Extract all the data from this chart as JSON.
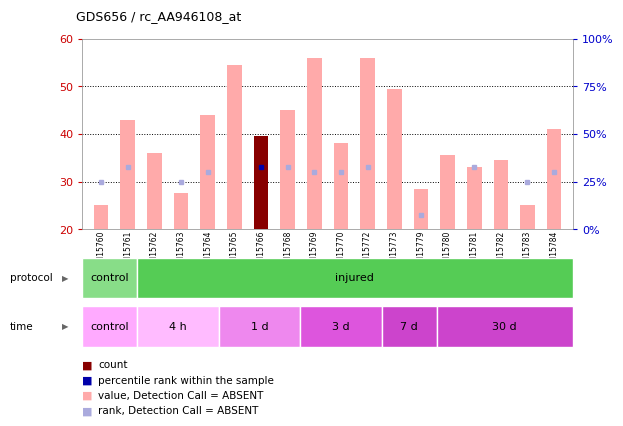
{
  "title": "GDS656 / rc_AA946108_at",
  "samples": [
    "GSM15760",
    "GSM15761",
    "GSM15762",
    "GSM15763",
    "GSM15764",
    "GSM15765",
    "GSM15766",
    "GSM15768",
    "GSM15769",
    "GSM15770",
    "GSM15772",
    "GSM15773",
    "GSM15779",
    "GSM15780",
    "GSM15781",
    "GSM15782",
    "GSM15783",
    "GSM15784"
  ],
  "bar_values": [
    25,
    43,
    36,
    27.5,
    44,
    54.5,
    39.5,
    45,
    56,
    38,
    56,
    49.5,
    28.5,
    35.5,
    33,
    34.5,
    25,
    41
  ],
  "rank_dots": [
    30,
    33,
    null,
    30,
    32,
    null,
    33,
    33,
    32,
    32,
    33,
    null,
    23,
    null,
    33,
    null,
    30,
    32
  ],
  "special_bar_idx": 6,
  "ylim_left": [
    20,
    60
  ],
  "ylim_right": [
    0,
    100
  ],
  "yticks_left": [
    20,
    30,
    40,
    50,
    60
  ],
  "yticks_right": [
    0,
    25,
    50,
    75,
    100
  ],
  "ytick_right_labels": [
    "0%",
    "25%",
    "50%",
    "75%",
    "100%"
  ],
  "left_tick_color": "#cc0000",
  "right_tick_color": "#0000cc",
  "bar_color_normal": "#ffaaaa",
  "bar_color_special": "#880000",
  "rank_dot_color": "#aaaadd",
  "rank_dot_color_special": "#0000aa",
  "protocol_groups": [
    {
      "label": "control",
      "start": 0,
      "end": 2,
      "color": "#88dd88"
    },
    {
      "label": "injured",
      "start": 2,
      "end": 18,
      "color": "#55cc55"
    }
  ],
  "time_groups": [
    {
      "label": "control",
      "start": 0,
      "end": 2,
      "color": "#ffaaff"
    },
    {
      "label": "4 h",
      "start": 2,
      "end": 5,
      "color": "#ffbbff"
    },
    {
      "label": "1 d",
      "start": 5,
      "end": 8,
      "color": "#ee88ee"
    },
    {
      "label": "3 d",
      "start": 8,
      "end": 11,
      "color": "#dd55dd"
    },
    {
      "label": "7 d",
      "start": 11,
      "end": 13,
      "color": "#cc44cc"
    },
    {
      "label": "30 d",
      "start": 13,
      "end": 18,
      "color": "#cc44cc"
    }
  ],
  "legend_items": [
    {
      "color": "#880000",
      "label": "count"
    },
    {
      "color": "#0000aa",
      "label": "percentile rank within the sample"
    },
    {
      "color": "#ffaaaa",
      "label": "value, Detection Call = ABSENT"
    },
    {
      "color": "#aaaadd",
      "label": "rank, Detection Call = ABSENT"
    }
  ],
  "bg_color": "#ffffff",
  "plot_bg_color": "#ffffff",
  "grid_color": "#000000"
}
